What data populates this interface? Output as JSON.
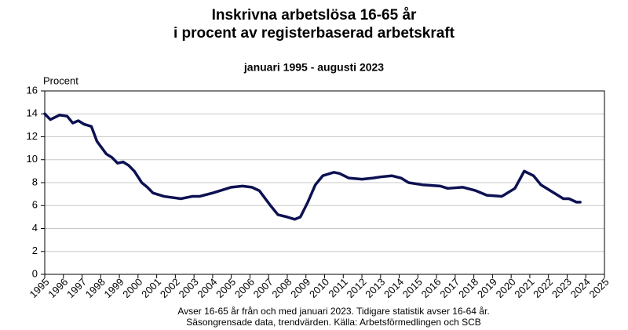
{
  "chart_data": {
    "type": "line",
    "title": [
      "Inskrivna arbetslösa 16-65 år",
      "i procent av registerbaserad arbetskraft"
    ],
    "subtitle": "januari 1995 - augusti 2023",
    "y_label": "Procent",
    "notes": [
      "Avser 16-65 år från och med januari 2023. Tidigare statistik avser 16-64 år.",
      "Säsongrensade data, trendvärden. Källa: Arbetsförmedlingen och SCB"
    ],
    "x": [
      1995.0,
      1995.3,
      1995.8,
      1996.2,
      1996.5,
      1996.8,
      1997.1,
      1997.5,
      1997.8,
      1998.3,
      1998.6,
      1998.9,
      1999.2,
      1999.5,
      1999.8,
      2000.2,
      2000.5,
      2000.8,
      2001.4,
      2002.3,
      2002.9,
      2003.3,
      2004.0,
      2004.6,
      2005.0,
      2005.6,
      2006.1,
      2006.5,
      2007.1,
      2007.5,
      2008.0,
      2008.4,
      2008.7,
      2009.1,
      2009.5,
      2009.9,
      2010.5,
      2010.8,
      2011.3,
      2012.0,
      2012.6,
      2013.0,
      2013.6,
      2014.1,
      2014.5,
      2015.3,
      2016.2,
      2016.6,
      2017.4,
      2018.1,
      2018.7,
      2019.5,
      2020.2,
      2020.7,
      2021.2,
      2021.6,
      2022.1,
      2022.5,
      2022.8,
      2023.1,
      2023.5,
      2023.7
    ],
    "series": [
      {
        "name": "Inskrivna arbetslösa",
        "color": "#0d1152",
        "values": [
          14.0,
          13.5,
          13.9,
          13.8,
          13.2,
          13.4,
          13.1,
          12.9,
          11.6,
          10.5,
          10.2,
          9.7,
          9.8,
          9.5,
          9.0,
          8.0,
          7.6,
          7.1,
          6.8,
          6.6,
          6.8,
          6.8,
          7.1,
          7.4,
          7.6,
          7.7,
          7.6,
          7.3,
          6.0,
          5.2,
          5.0,
          4.8,
          5.0,
          6.3,
          7.8,
          8.6,
          8.9,
          8.8,
          8.4,
          8.3,
          8.4,
          8.5,
          8.6,
          8.4,
          8.0,
          7.8,
          7.7,
          7.5,
          7.6,
          7.3,
          6.9,
          6.8,
          7.5,
          9.0,
          8.6,
          7.8,
          7.3,
          6.9,
          6.6,
          6.6,
          6.3,
          6.3
        ]
      }
    ],
    "xlim": [
      1995,
      2025
    ],
    "xticks": [
      1995,
      1996,
      1997,
      1998,
      1999,
      2000,
      2001,
      2002,
      2003,
      2004,
      2005,
      2006,
      2007,
      2008,
      2009,
      2010,
      2011,
      2012,
      2013,
      2014,
      2015,
      2016,
      2017,
      2018,
      2019,
      2020,
      2021,
      2022,
      2023,
      2024,
      2025
    ],
    "ylim": [
      0,
      16
    ],
    "yticks": [
      0,
      2,
      4,
      6,
      8,
      10,
      12,
      14,
      16
    ],
    "grid": true
  }
}
